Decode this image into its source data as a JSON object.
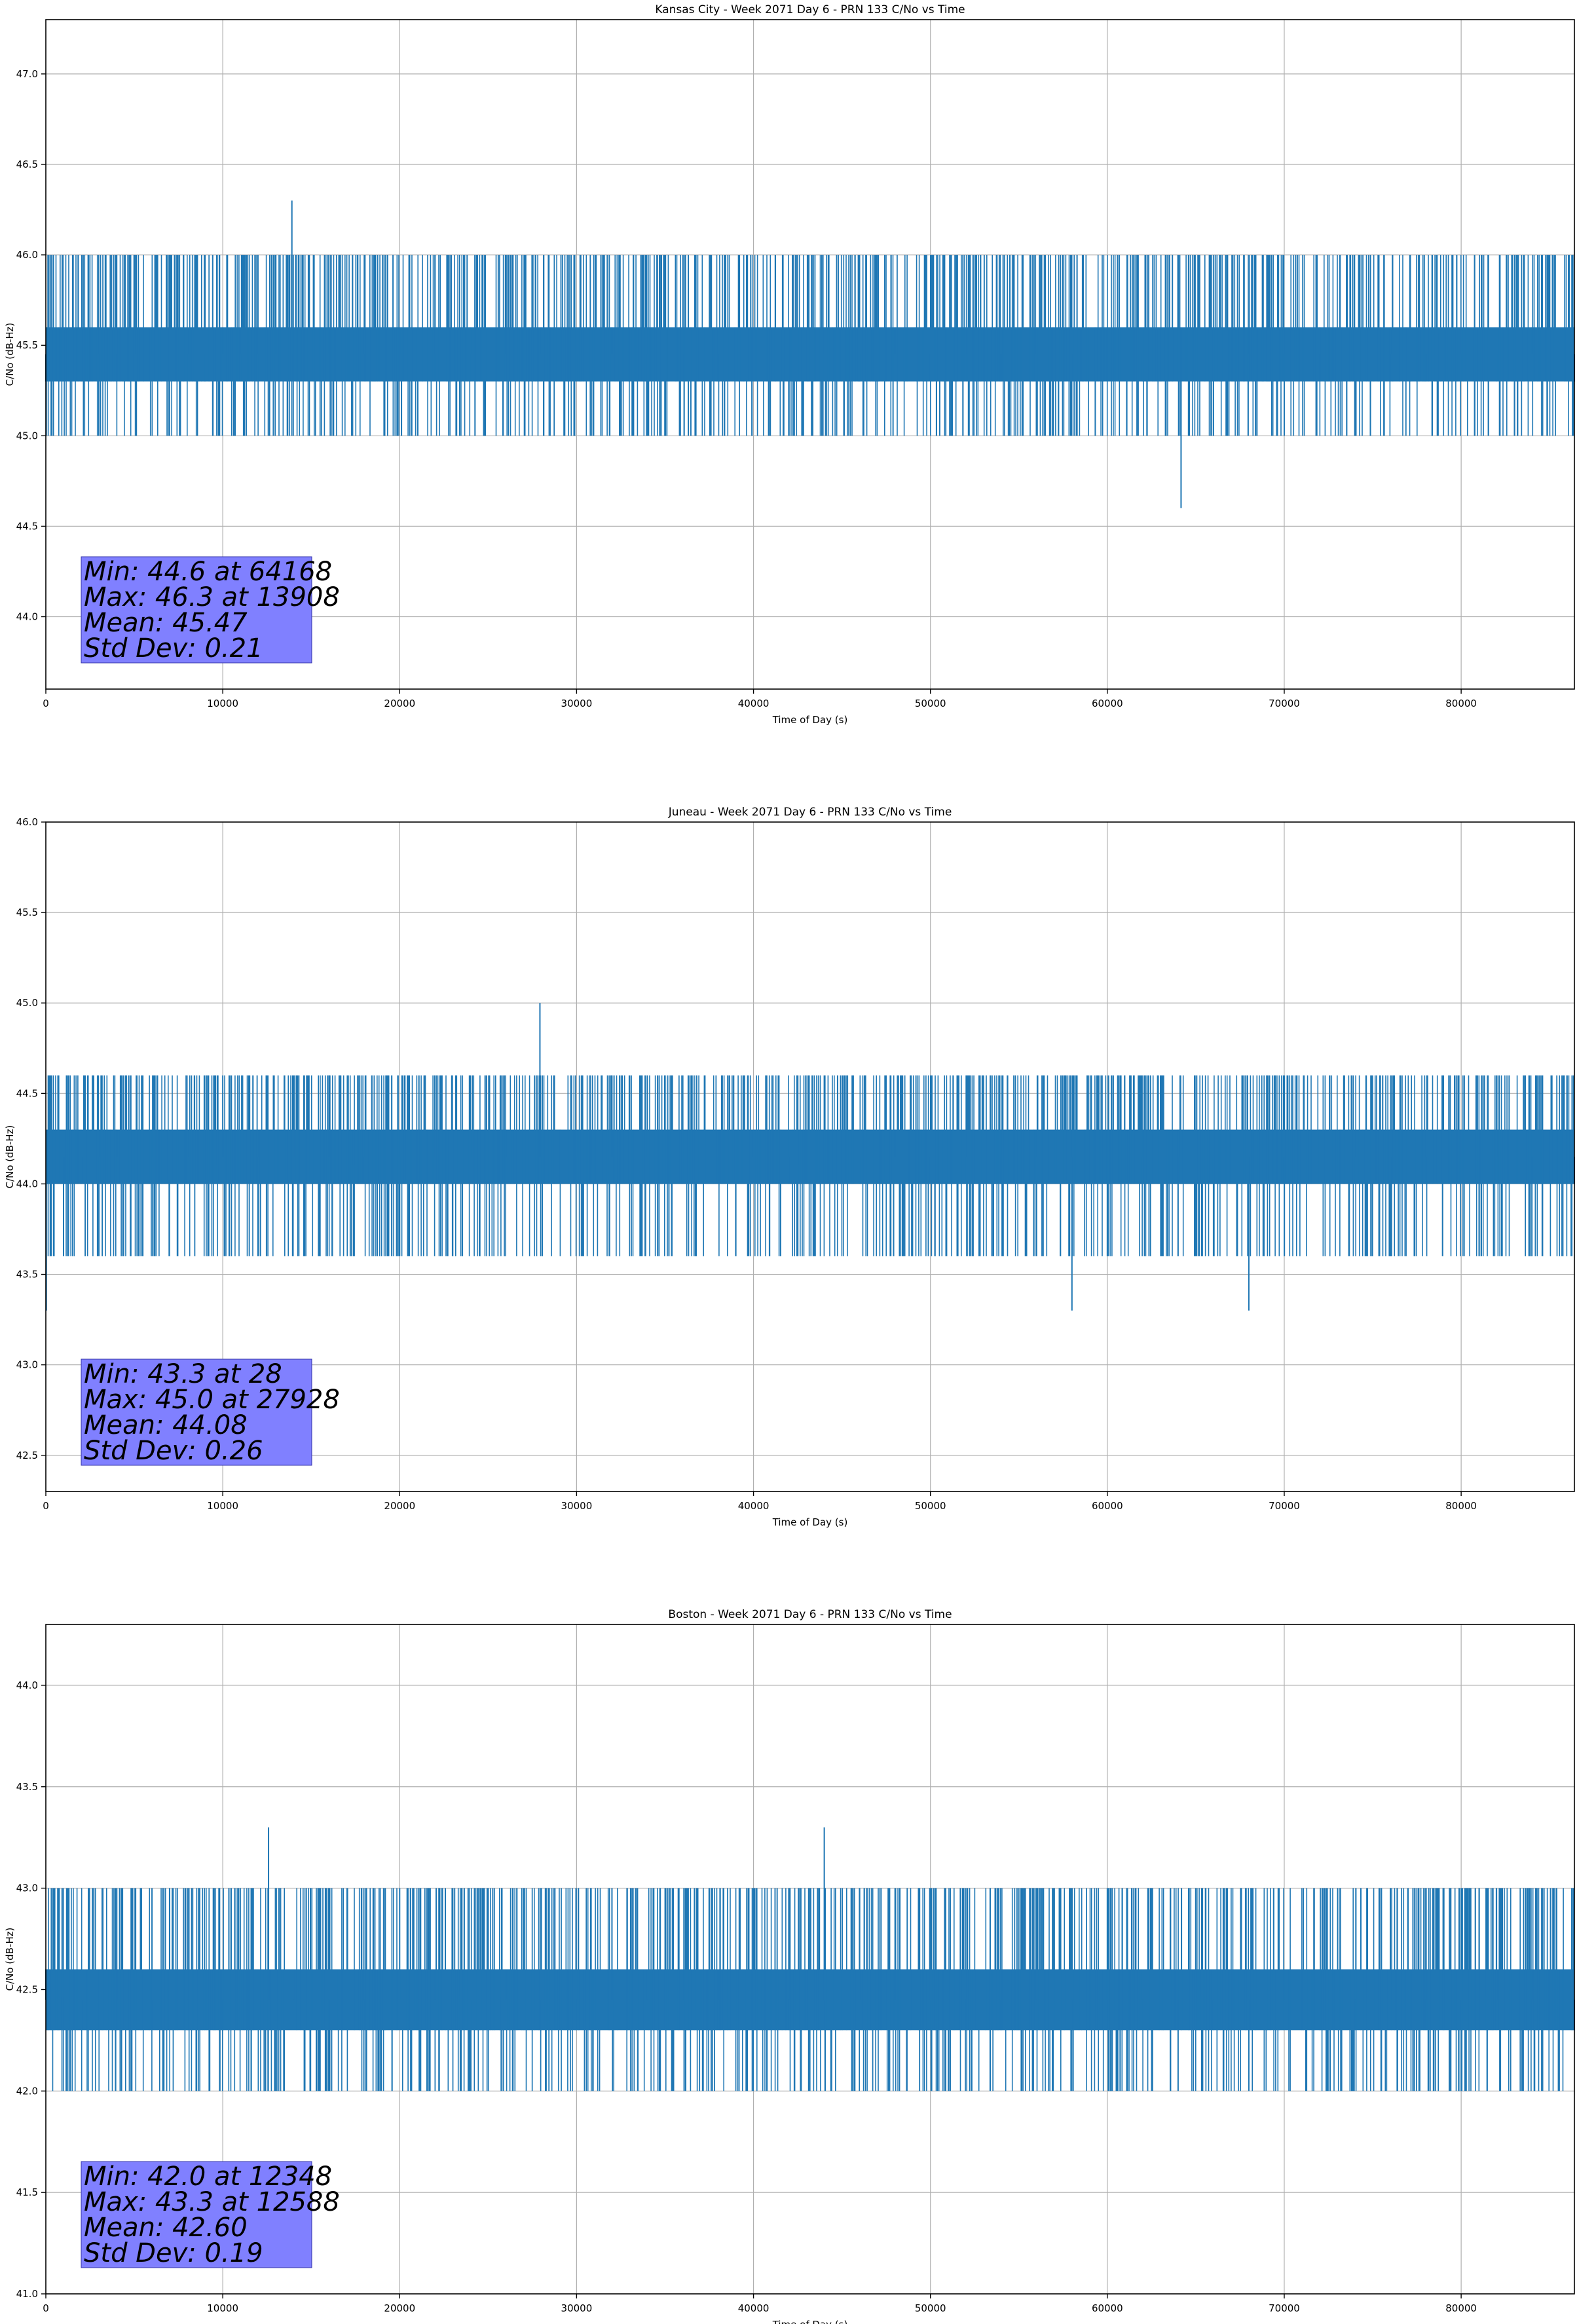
{
  "chart_data": [
    {
      "type": "line",
      "title": "Kansas City - Week 2071 Day 6 - PRN 133 C/No vs Time",
      "xlabel": "Time of Day (s)",
      "ylabel": "C/No (dB-Hz)",
      "xlim": [
        0,
        86400
      ],
      "ylim": [
        43.6,
        47.3
      ],
      "xticks": [
        0,
        10000,
        20000,
        30000,
        40000,
        50000,
        60000,
        70000,
        80000
      ],
      "yticks": [
        44.0,
        44.5,
        45.0,
        45.5,
        46.0,
        46.5,
        47.0
      ],
      "grid": true,
      "series_color": "#1f77b4",
      "series": [
        {
          "x": [
            0,
            1000,
            2000,
            3000,
            4000,
            5000,
            6000,
            7000,
            8000,
            9000,
            10000,
            11000,
            12000,
            13000,
            13908,
            14500,
            16000,
            18000,
            20000,
            22000,
            24000,
            26000,
            28000,
            30000,
            32000,
            34000,
            36000,
            38000,
            40000,
            42000,
            44000,
            46000,
            48000,
            50000,
            52000,
            54000,
            56000,
            58000,
            60000,
            62000,
            64168,
            66000,
            68000,
            70000,
            72000,
            74000,
            76000,
            78000,
            80000,
            82000,
            84000,
            86400
          ],
          "y": [
            45.3,
            45.6,
            45.3,
            45.6,
            45.3,
            46.0,
            45.6,
            46.0,
            45.6,
            45.3,
            45.6,
            45.3,
            45.6,
            46.0,
            46.3,
            46.0,
            45.6,
            46.0,
            45.6,
            46.0,
            45.6,
            46.0,
            45.6,
            45.3,
            45.6,
            45.0,
            45.6,
            45.3,
            45.6,
            45.3,
            45.6,
            45.3,
            45.6,
            45.3,
            45.6,
            45.3,
            45.6,
            45.3,
            45.6,
            45.3,
            44.6,
            45.0,
            45.3,
            45.0,
            45.6,
            45.3,
            45.6,
            45.3,
            45.6,
            45.3,
            45.6,
            45.3
          ],
          "band": {
            "main": [
              45.3,
              45.6
            ],
            "upper": 46.0,
            "lower": 45.0
          }
        }
      ],
      "stats": {
        "min": "Min: 44.6 at 64168",
        "max": "Max: 46.3 at 13908",
        "mean": "Mean: 45.47",
        "std": "Std Dev: 0.21"
      }
    },
    {
      "type": "line",
      "title": "Juneau - Week 2071 Day 6 - PRN 133 C/No vs Time",
      "xlabel": "Time of Day (s)",
      "ylabel": "C/No (dB-Hz)",
      "xlim": [
        0,
        86400
      ],
      "ylim": [
        42.3,
        46.0
      ],
      "xticks": [
        0,
        10000,
        20000,
        30000,
        40000,
        50000,
        60000,
        70000,
        80000
      ],
      "yticks": [
        42.5,
        43.0,
        43.5,
        44.0,
        44.5,
        45.0,
        45.5,
        46.0
      ],
      "grid": true,
      "series_color": "#1f77b4",
      "series": [
        {
          "x": [
            28,
            1000,
            2000,
            3000,
            4000,
            6000,
            8000,
            10000,
            12000,
            14000,
            16000,
            18000,
            20000,
            22000,
            24000,
            26000,
            27928,
            30000,
            32000,
            34000,
            36000,
            38000,
            40000,
            42000,
            44000,
            46000,
            48000,
            50000,
            52000,
            54000,
            56000,
            58000,
            60000,
            62000,
            64000,
            66000,
            68000,
            70000,
            72000,
            74000,
            76000,
            78000,
            80000,
            82000,
            84000,
            86400
          ],
          "y": [
            43.3,
            43.6,
            44.0,
            43.6,
            44.3,
            44.0,
            44.3,
            44.6,
            44.0,
            44.3,
            44.6,
            44.0,
            43.6,
            44.3,
            44.6,
            44.3,
            45.0,
            44.3,
            44.6,
            44.6,
            44.3,
            44.0,
            44.3,
            44.0,
            44.3,
            44.0,
            44.3,
            44.0,
            44.3,
            44.0,
            43.6,
            43.3,
            43.6,
            44.0,
            43.6,
            43.6,
            43.3,
            44.0,
            44.3,
            44.0,
            43.6,
            44.0,
            44.3,
            44.6,
            43.6,
            44.0
          ],
          "band": {
            "main": [
              44.0,
              44.3
            ],
            "upper": 44.6,
            "lower": 43.6
          }
        }
      ],
      "stats": {
        "min": "Min: 43.3 at 28",
        "max": "Max: 45.0 at 27928",
        "mean": "Mean: 44.08",
        "std": "Std Dev: 0.26"
      }
    },
    {
      "type": "line",
      "title": "Boston - Week 2071 Day 6 - PRN 133 C/No vs Time",
      "xlabel": "Time of Day (s)",
      "ylabel": "C/No (dB-Hz)",
      "xlim": [
        0,
        86400
      ],
      "ylim": [
        41.0,
        44.3
      ],
      "xticks": [
        0,
        10000,
        20000,
        30000,
        40000,
        50000,
        60000,
        70000,
        80000
      ],
      "yticks": [
        41.0,
        41.5,
        42.0,
        42.5,
        43.0,
        43.5,
        44.0
      ],
      "grid": true,
      "series_color": "#1f77b4",
      "series": [
        {
          "x": [
            0,
            2000,
            4000,
            6000,
            8000,
            10000,
            12348,
            12588,
            14000,
            16000,
            18000,
            20000,
            22000,
            24000,
            26000,
            28000,
            30000,
            32000,
            34000,
            36000,
            38000,
            40000,
            42000,
            44000,
            46000,
            48000,
            50000,
            52000,
            54000,
            56000,
            58000,
            60000,
            62000,
            64000,
            66000,
            68000,
            70000,
            72000,
            74000,
            76000,
            78000,
            80000,
            82000,
            84000,
            86400
          ],
          "y": [
            42.6,
            42.3,
            42.6,
            43.0,
            42.6,
            42.3,
            42.0,
            43.3,
            42.6,
            42.3,
            42.6,
            43.0,
            42.6,
            42.3,
            42.6,
            42.3,
            42.6,
            43.0,
            42.6,
            42.3,
            42.6,
            43.0,
            42.6,
            43.3,
            43.0,
            42.6,
            43.0,
            42.6,
            42.3,
            42.6,
            42.3,
            43.0,
            42.6,
            42.0,
            42.3,
            42.0,
            42.6,
            42.3,
            42.6,
            43.0,
            42.6,
            42.0,
            43.0,
            42.6,
            42.3
          ],
          "band": {
            "main": [
              42.3,
              42.6
            ],
            "upper": 43.0,
            "lower": 42.0
          }
        }
      ],
      "stats": {
        "min": "Min: 42.0 at 12348",
        "max": "Max: 43.3 at 12588",
        "mean": "Mean: 42.60",
        "std": "Std Dev: 0.19"
      }
    }
  ]
}
